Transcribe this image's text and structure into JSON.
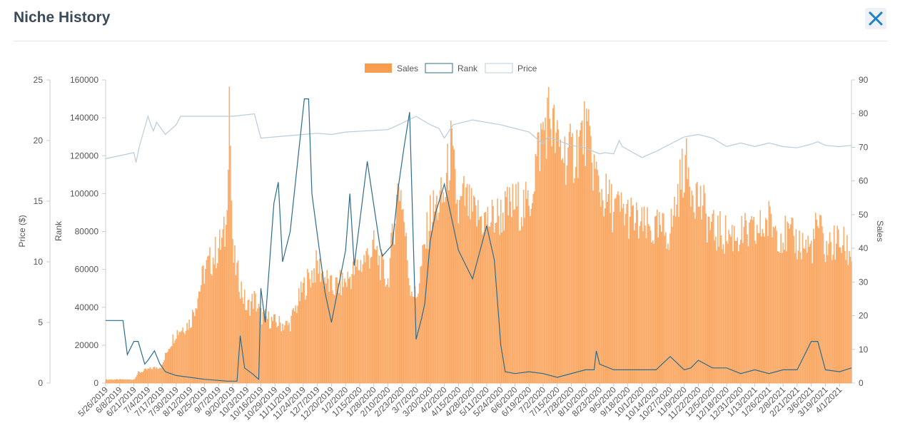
{
  "dialog": {
    "title": "Niche History",
    "close_icon": "close-icon"
  },
  "colors": {
    "sales": "#f89c4e",
    "sales_fill": "#fbb57a",
    "rank": "#2c6d8e",
    "price": "#b9ccdc",
    "axis_text": "#555555"
  },
  "chart_data": {
    "type": "bar",
    "legend": [
      "Sales",
      "Rank",
      "Price"
    ],
    "legend_position": "top-center",
    "grid": false,
    "axes": {
      "price": {
        "label": "Price ($)",
        "min": 0,
        "max": 25,
        "ticks": [
          "0",
          "5",
          "10",
          "15",
          "20",
          "25"
        ]
      },
      "rank": {
        "label": "Rank",
        "min": 0,
        "max": 160000,
        "ticks": [
          "0",
          "20000",
          "40000",
          "60000",
          "80000",
          "100000",
          "120000",
          "140000",
          "160000"
        ]
      },
      "sales": {
        "label": "Sales",
        "min": 0,
        "max": 90,
        "ticks": [
          "0",
          "10",
          "20",
          "30",
          "40",
          "50",
          "60",
          "70",
          "80",
          "90"
        ]
      }
    },
    "x_range": [
      "2019-05-26",
      "2021-04-12"
    ],
    "x_tick_labels": [
      "5/26/2019",
      "6/8/2019",
      "6/21/2019",
      "7/4/2019",
      "7/17/2019",
      "7/30/2019",
      "8/12/2019",
      "8/25/2019",
      "9/7/2019",
      "9/20/2019",
      "10/3/2019",
      "10/16/2019",
      "10/29/2019",
      "11/11/2019",
      "11/24/2019",
      "12/7/2019",
      "12/20/2019",
      "1/2/2020",
      "1/15/2020",
      "1/28/2020",
      "2/10/2020",
      "2/23/2020",
      "3/7/2020",
      "3/20/2020",
      "4/2/2020",
      "4/15/2020",
      "4/28/2020",
      "5/11/2020",
      "5/24/2020",
      "6/6/2020",
      "6/19/2020",
      "7/2/2020",
      "7/15/2020",
      "7/28/2020",
      "8/10/2020",
      "8/23/2020",
      "9/5/2020",
      "9/18/2020",
      "10/1/2020",
      "10/14/2020",
      "10/27/2020",
      "11/9/2020",
      "11/22/2020",
      "12/5/2020",
      "12/18/2020",
      "12/31/2020",
      "1/13/2021",
      "1/26/2021",
      "2/8/2021",
      "2/21/2021",
      "3/6/2021",
      "3/19/2021",
      "4/1/2021"
    ],
    "series": [
      {
        "name": "Sales",
        "axis": "sales",
        "style": "bar",
        "points": [
          [
            "2019-05-26",
            1
          ],
          [
            "2019-06-21",
            1
          ],
          [
            "2019-06-25",
            3
          ],
          [
            "2019-07-04",
            4
          ],
          [
            "2019-07-17",
            5
          ],
          [
            "2019-07-22",
            10
          ],
          [
            "2019-07-30",
            15
          ],
          [
            "2019-08-12",
            18
          ],
          [
            "2019-08-25",
            33
          ],
          [
            "2019-09-07",
            40
          ],
          [
            "2019-09-14",
            45
          ],
          [
            "2019-09-17",
            88
          ],
          [
            "2019-09-20",
            38
          ],
          [
            "2019-10-03",
            22
          ],
          [
            "2019-10-10",
            25
          ],
          [
            "2019-10-16",
            20
          ],
          [
            "2019-10-29",
            18
          ],
          [
            "2019-11-11",
            17
          ],
          [
            "2019-11-24",
            28
          ],
          [
            "2019-12-07",
            35
          ],
          [
            "2019-12-20",
            28
          ],
          [
            "2020-01-02",
            30
          ],
          [
            "2020-01-15",
            35
          ],
          [
            "2020-01-28",
            40
          ],
          [
            "2020-02-10",
            30
          ],
          [
            "2020-02-20",
            60
          ],
          [
            "2020-02-23",
            55
          ],
          [
            "2020-03-01",
            30
          ],
          [
            "2020-03-07",
            25
          ],
          [
            "2020-03-20",
            50
          ],
          [
            "2020-04-02",
            55
          ],
          [
            "2020-04-08",
            70
          ],
          [
            "2020-04-15",
            50
          ],
          [
            "2020-04-20",
            55
          ],
          [
            "2020-04-28",
            50
          ],
          [
            "2020-05-11",
            48
          ],
          [
            "2020-05-24",
            50
          ],
          [
            "2020-06-06",
            53
          ],
          [
            "2020-06-19",
            52
          ],
          [
            "2020-06-25",
            65
          ],
          [
            "2020-07-02",
            75
          ],
          [
            "2020-07-08",
            80
          ],
          [
            "2020-07-15",
            70
          ],
          [
            "2020-07-28",
            67
          ],
          [
            "2020-08-10",
            75
          ],
          [
            "2020-08-23",
            57
          ],
          [
            "2020-09-05",
            52
          ],
          [
            "2020-09-18",
            50
          ],
          [
            "2020-10-01",
            46
          ],
          [
            "2020-10-14",
            45
          ],
          [
            "2020-10-27",
            45
          ],
          [
            "2020-11-09",
            65
          ],
          [
            "2020-11-22",
            55
          ],
          [
            "2020-12-05",
            45
          ],
          [
            "2020-12-18",
            44
          ],
          [
            "2020-12-31",
            44
          ],
          [
            "2021-01-13",
            44
          ],
          [
            "2021-01-26",
            48
          ],
          [
            "2021-02-08",
            44
          ],
          [
            "2021-02-21",
            42
          ],
          [
            "2021-03-06",
            40
          ],
          [
            "2021-03-12",
            47
          ],
          [
            "2021-03-19",
            40
          ],
          [
            "2021-04-01",
            42
          ],
          [
            "2021-04-12",
            38
          ]
        ]
      },
      {
        "name": "Rank",
        "axis": "rank",
        "style": "line",
        "points": [
          [
            "2019-05-26",
            33000
          ],
          [
            "2019-06-08",
            33000
          ],
          [
            "2019-06-11",
            33000
          ],
          [
            "2019-06-15",
            15000
          ],
          [
            "2019-06-21",
            22000
          ],
          [
            "2019-06-25",
            22000
          ],
          [
            "2019-07-01",
            10000
          ],
          [
            "2019-07-04",
            12000
          ],
          [
            "2019-07-10",
            17000
          ],
          [
            "2019-07-15",
            10000
          ],
          [
            "2019-07-20",
            6000
          ],
          [
            "2019-07-30",
            4000
          ],
          [
            "2019-08-25",
            2000
          ],
          [
            "2019-09-15",
            1000
          ],
          [
            "2019-09-24",
            1000
          ],
          [
            "2019-09-27",
            25000
          ],
          [
            "2019-10-01",
            8000
          ],
          [
            "2019-10-08",
            5000
          ],
          [
            "2019-10-14",
            2000
          ],
          [
            "2019-10-16",
            50000
          ],
          [
            "2019-10-20",
            32000
          ],
          [
            "2019-10-28",
            95000
          ],
          [
            "2019-11-01",
            106000
          ],
          [
            "2019-11-05",
            64000
          ],
          [
            "2019-11-12",
            80000
          ],
          [
            "2019-11-25",
            150000
          ],
          [
            "2019-11-29",
            150000
          ],
          [
            "2019-12-02",
            100000
          ],
          [
            "2019-12-14",
            48000
          ],
          [
            "2019-12-20",
            32000
          ],
          [
            "2020-01-02",
            70000
          ],
          [
            "2020-01-06",
            100000
          ],
          [
            "2020-01-10",
            62000
          ],
          [
            "2020-01-22",
            117000
          ],
          [
            "2020-02-03",
            71000
          ],
          [
            "2020-02-05",
            67000
          ],
          [
            "2020-02-14",
            73000
          ],
          [
            "2020-02-20",
            105000
          ],
          [
            "2020-02-25",
            125000
          ],
          [
            "2020-03-01",
            143000
          ],
          [
            "2020-03-07",
            23000
          ],
          [
            "2020-03-12",
            34000
          ],
          [
            "2020-03-15",
            42000
          ],
          [
            "2020-03-20",
            75000
          ],
          [
            "2020-03-25",
            90000
          ],
          [
            "2020-04-02",
            105000
          ],
          [
            "2020-04-15",
            70000
          ],
          [
            "2020-04-28",
            55000
          ],
          [
            "2020-05-11",
            83000
          ],
          [
            "2020-05-18",
            65000
          ],
          [
            "2020-05-24",
            20000
          ],
          [
            "2020-05-28",
            6000
          ],
          [
            "2020-06-06",
            5000
          ],
          [
            "2020-06-19",
            6000
          ],
          [
            "2020-07-02",
            5000
          ],
          [
            "2020-07-15",
            3000
          ],
          [
            "2020-08-10",
            7000
          ],
          [
            "2020-08-18",
            7000
          ],
          [
            "2020-08-20",
            17000
          ],
          [
            "2020-08-23",
            10000
          ],
          [
            "2020-09-05",
            7000
          ],
          [
            "2020-10-14",
            7000
          ],
          [
            "2020-10-27",
            14000
          ],
          [
            "2020-11-09",
            7000
          ],
          [
            "2020-11-15",
            8000
          ],
          [
            "2020-11-22",
            12000
          ],
          [
            "2020-12-05",
            8000
          ],
          [
            "2020-12-18",
            8000
          ],
          [
            "2020-12-31",
            5000
          ],
          [
            "2021-01-13",
            7000
          ],
          [
            "2021-01-26",
            5000
          ],
          [
            "2021-02-08",
            7000
          ],
          [
            "2021-02-21",
            7000
          ],
          [
            "2021-03-06",
            22000
          ],
          [
            "2021-03-12",
            22000
          ],
          [
            "2021-03-19",
            7000
          ],
          [
            "2021-04-01",
            6000
          ],
          [
            "2021-04-12",
            8000
          ]
        ]
      },
      {
        "name": "Price",
        "axis": "price",
        "style": "line",
        "points": [
          [
            "2019-05-26",
            18.5
          ],
          [
            "2019-06-21",
            19.0
          ],
          [
            "2019-06-23",
            18.2
          ],
          [
            "2019-06-26",
            19.5
          ],
          [
            "2019-07-04",
            22.0
          ],
          [
            "2019-07-07",
            21.2
          ],
          [
            "2019-07-09",
            20.8
          ],
          [
            "2019-07-12",
            21.5
          ],
          [
            "2019-07-20",
            20.5
          ],
          [
            "2019-07-30",
            21.3
          ],
          [
            "2019-08-03",
            22.0
          ],
          [
            "2019-09-20",
            22.0
          ],
          [
            "2019-10-10",
            22.2
          ],
          [
            "2019-10-16",
            20.2
          ],
          [
            "2019-11-24",
            20.5
          ],
          [
            "2019-12-07",
            20.6
          ],
          [
            "2019-12-20",
            20.5
          ],
          [
            "2020-01-02",
            20.7
          ],
          [
            "2020-02-10",
            20.9
          ],
          [
            "2020-02-20",
            21.3
          ],
          [
            "2020-03-07",
            22.0
          ],
          [
            "2020-03-20",
            21.3
          ],
          [
            "2020-03-28",
            21.0
          ],
          [
            "2020-04-02",
            20.2
          ],
          [
            "2020-04-10",
            21.3
          ],
          [
            "2020-04-28",
            21.7
          ],
          [
            "2020-05-24",
            21.3
          ],
          [
            "2020-06-19",
            20.7
          ],
          [
            "2020-07-02",
            19.7
          ],
          [
            "2020-07-06",
            20.3
          ],
          [
            "2020-07-28",
            19.6
          ],
          [
            "2020-08-10",
            19.4
          ],
          [
            "2020-08-23",
            18.9
          ],
          [
            "2020-08-28",
            19.0
          ],
          [
            "2020-09-05",
            18.9
          ],
          [
            "2020-09-10",
            20.0
          ],
          [
            "2020-09-13",
            19.5
          ],
          [
            "2020-10-01",
            18.6
          ],
          [
            "2020-10-14",
            19.1
          ],
          [
            "2020-11-09",
            20.3
          ],
          [
            "2020-11-22",
            20.5
          ],
          [
            "2020-12-05",
            20.2
          ],
          [
            "2020-12-18",
            19.5
          ],
          [
            "2020-12-31",
            19.8
          ],
          [
            "2021-01-13",
            19.5
          ],
          [
            "2021-01-26",
            19.8
          ],
          [
            "2021-02-08",
            19.5
          ],
          [
            "2021-02-21",
            19.4
          ],
          [
            "2021-03-06",
            19.7
          ],
          [
            "2021-03-12",
            19.9
          ],
          [
            "2021-03-19",
            19.6
          ],
          [
            "2021-04-01",
            19.5
          ],
          [
            "2021-04-12",
            19.6
          ]
        ]
      }
    ]
  }
}
